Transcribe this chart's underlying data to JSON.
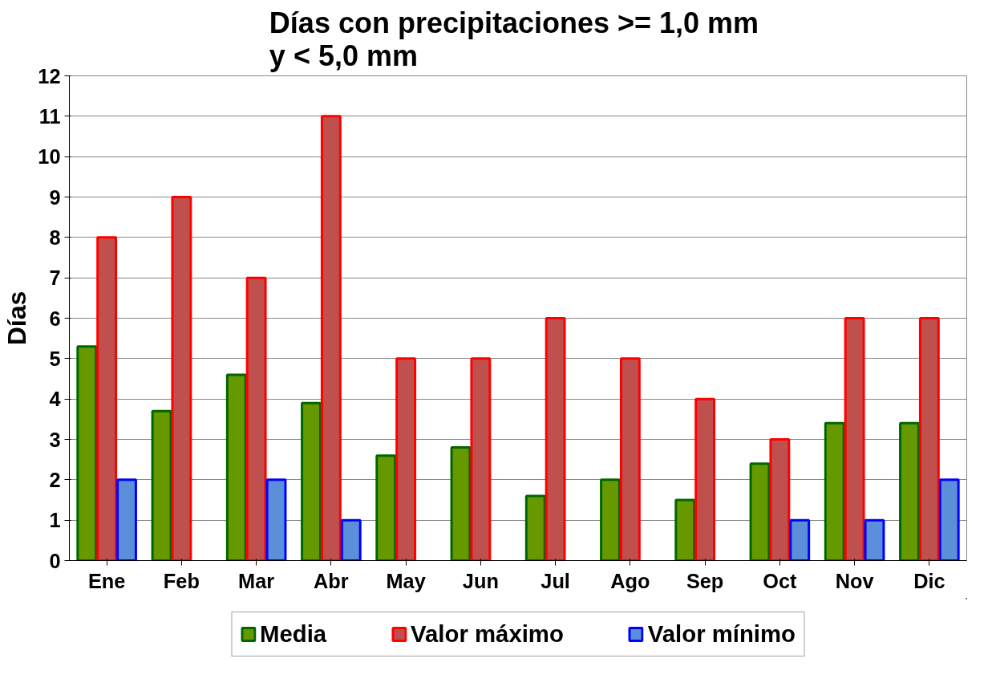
{
  "chart_data": {
    "type": "bar",
    "title": "Días con precipitaciones  >= 1,0 mm\ny < 5,0 mm",
    "ylabel": "Días",
    "categories": [
      "Ene",
      "Feb",
      "Mar",
      "Abr",
      "May",
      "Jun",
      "Jul",
      "Ago",
      "Sep",
      "Oct",
      "Nov",
      "Dic"
    ],
    "series": [
      {
        "name": "Media",
        "color": "#669900",
        "values": [
          5.3,
          3.7,
          4.6,
          3.9,
          2.6,
          2.8,
          1.6,
          2.0,
          1.5,
          2.4,
          3.4,
          3.4
        ]
      },
      {
        "name": "Valor máximo",
        "color": "#c0504d",
        "values": [
          8,
          9,
          7,
          11,
          5,
          5,
          6,
          5,
          4,
          3,
          6,
          6
        ]
      },
      {
        "name": "Valor mínimo",
        "color": "#5b8fd9",
        "values": [
          2,
          null,
          2,
          1,
          null,
          null,
          null,
          null,
          null,
          1,
          1,
          2
        ]
      }
    ],
    "ylim": [
      0,
      12
    ],
    "yticks": [
      0,
      1,
      2,
      3,
      4,
      5,
      6,
      7,
      8,
      9,
      10,
      11,
      12
    ],
    "grid": "y",
    "legend": "bottom"
  }
}
